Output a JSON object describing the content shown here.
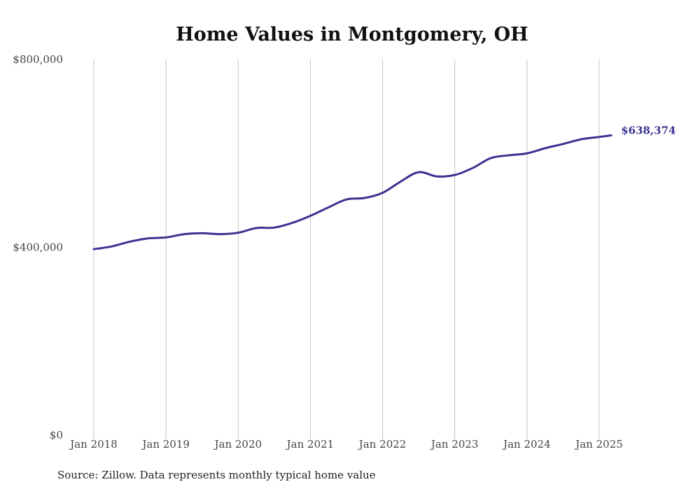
{
  "chart_data": {
    "type": "line",
    "title": "Home Values in Montgomery, OH",
    "source": "Source: Zillow. Data represents monthly typical home value",
    "xlabel": "",
    "ylabel": "",
    "ylim": [
      0,
      800000
    ],
    "y_ticks": [
      {
        "value": 0,
        "label": "$0"
      },
      {
        "value": 400000,
        "label": "$400,000"
      },
      {
        "value": 800000,
        "label": "$800,000"
      }
    ],
    "x_ticks": [
      "Jan 2018",
      "Jan 2019",
      "Jan 2020",
      "Jan 2021",
      "Jan 2022",
      "Jan 2023",
      "Jan 2024",
      "Jan 2025"
    ],
    "x_range": [
      "2018-01",
      "2025-03"
    ],
    "grid": "vertical",
    "series": [
      {
        "color": "#3b3491",
        "end_label": "$638,374",
        "points": [
          [
            "2018-01",
            396000
          ],
          [
            "2018-04",
            402000
          ],
          [
            "2018-07",
            412000
          ],
          [
            "2018-10",
            419000
          ],
          [
            "2019-01",
            421000
          ],
          [
            "2019-04",
            428000
          ],
          [
            "2019-07",
            430000
          ],
          [
            "2019-10",
            428000
          ],
          [
            "2020-01",
            431000
          ],
          [
            "2020-04",
            441000
          ],
          [
            "2020-07",
            442000
          ],
          [
            "2020-10",
            452000
          ],
          [
            "2021-01",
            467000
          ],
          [
            "2021-04",
            485000
          ],
          [
            "2021-07",
            502000
          ],
          [
            "2021-10",
            505000
          ],
          [
            "2022-01",
            516000
          ],
          [
            "2022-04",
            540000
          ],
          [
            "2022-07",
            560000
          ],
          [
            "2022-10",
            551000
          ],
          [
            "2023-01",
            554000
          ],
          [
            "2023-04",
            569000
          ],
          [
            "2023-07",
            590000
          ],
          [
            "2023-10",
            596000
          ],
          [
            "2024-01",
            600000
          ],
          [
            "2024-04",
            611000
          ],
          [
            "2024-07",
            620000
          ],
          [
            "2024-10",
            630000
          ],
          [
            "2025-01",
            635000
          ],
          [
            "2025-03",
            638374
          ]
        ]
      }
    ]
  }
}
